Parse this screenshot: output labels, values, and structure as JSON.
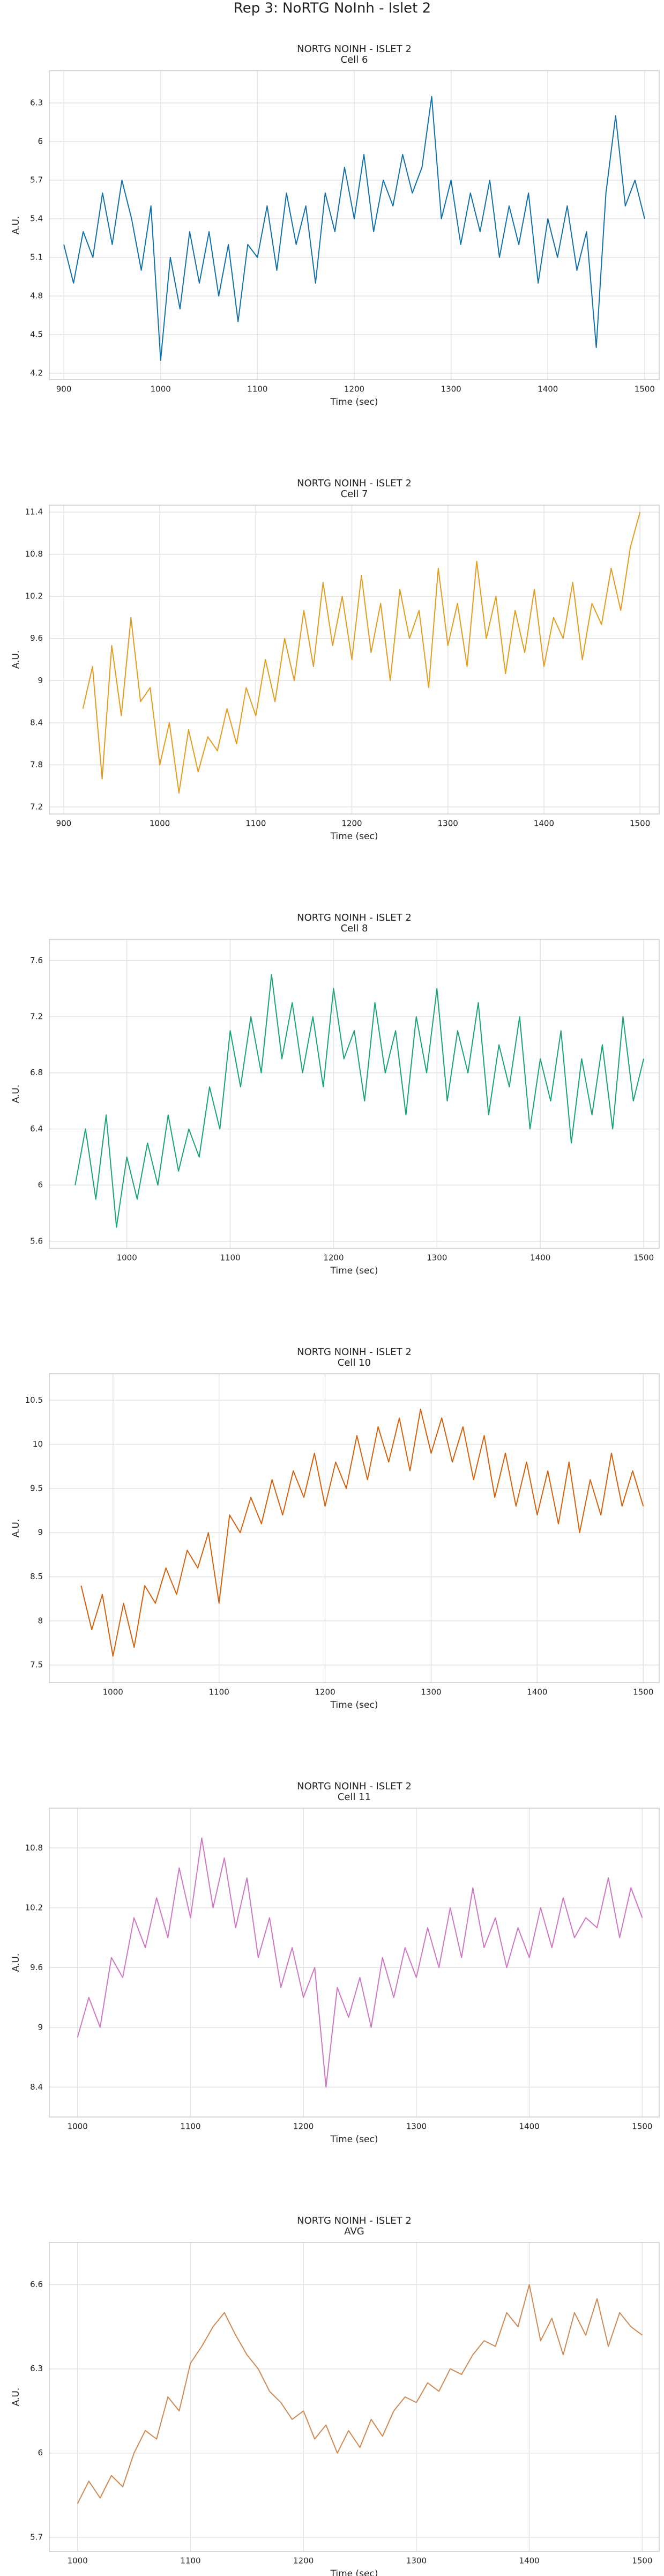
{
  "suptitle": "Rep 3: NoRTG NoInh - Islet 2",
  "chart_data": [
    {
      "type": "line",
      "title": "NORTG NOINH - ISLET 2",
      "subtitle": "Cell 6",
      "x_label": "Time (sec)",
      "y_label": "A.U.",
      "x": [
        900,
        910,
        920,
        930,
        940,
        950,
        960,
        970,
        980,
        990,
        1000,
        1010,
        1020,
        1030,
        1040,
        1050,
        1060,
        1070,
        1080,
        1090,
        1100,
        1110,
        1120,
        1130,
        1140,
        1150,
        1160,
        1170,
        1180,
        1190,
        1200,
        1210,
        1220,
        1230,
        1240,
        1250,
        1260,
        1270,
        1280,
        1290,
        1300,
        1310,
        1320,
        1330,
        1340,
        1350,
        1360,
        1370,
        1380,
        1390,
        1400,
        1410,
        1420,
        1430,
        1440,
        1450,
        1460,
        1470,
        1480,
        1490,
        1500
      ],
      "series": [
        {
          "color": "#1170aa",
          "values": [
            5.2,
            4.9,
            5.3,
            5.1,
            5.6,
            5.2,
            5.7,
            5.4,
            5.0,
            5.5,
            4.3,
            5.1,
            4.7,
            5.3,
            4.9,
            5.3,
            4.8,
            5.2,
            4.6,
            5.2,
            5.1,
            5.5,
            5.0,
            5.6,
            5.2,
            5.5,
            4.9,
            5.6,
            5.3,
            5.8,
            5.4,
            5.9,
            5.3,
            5.7,
            5.5,
            5.9,
            5.6,
            5.8,
            6.35,
            5.4,
            5.7,
            5.2,
            5.6,
            5.3,
            5.7,
            5.1,
            5.5,
            5.2,
            5.6,
            4.9,
            5.4,
            5.1,
            5.5,
            5.0,
            5.3,
            4.4,
            5.6,
            6.2,
            5.5,
            5.7,
            5.4
          ]
        }
      ],
      "xlim": [
        885,
        1515
      ],
      "ylim": [
        4.15,
        6.55
      ],
      "xticks": [
        900,
        1000,
        1100,
        1200,
        1300,
        1400,
        1500
      ],
      "yticks": [
        4.2,
        4.5,
        4.8,
        5.1,
        5.4,
        5.7,
        6.0,
        6.3
      ],
      "grid": true
    },
    {
      "type": "line",
      "title": "NORTG NOINH - ISLET 2",
      "subtitle": "Cell 7",
      "x_label": "Time (sec)",
      "y_label": "A.U.",
      "x": [
        920,
        930,
        940,
        950,
        960,
        970,
        980,
        990,
        1000,
        1010,
        1020,
        1030,
        1040,
        1050,
        1060,
        1070,
        1080,
        1090,
        1100,
        1110,
        1120,
        1130,
        1140,
        1150,
        1160,
        1170,
        1180,
        1190,
        1200,
        1210,
        1220,
        1230,
        1240,
        1250,
        1260,
        1270,
        1280,
        1290,
        1300,
        1310,
        1320,
        1330,
        1340,
        1350,
        1360,
        1370,
        1380,
        1390,
        1400,
        1410,
        1420,
        1430,
        1440,
        1450,
        1460,
        1470,
        1480,
        1490,
        1500
      ],
      "series": [
        {
          "color": "#e39c22",
          "values": [
            8.6,
            9.2,
            7.6,
            9.5,
            8.5,
            9.9,
            8.7,
            8.9,
            7.8,
            8.4,
            7.4,
            8.3,
            7.7,
            8.2,
            8.0,
            8.6,
            8.1,
            8.9,
            8.5,
            9.3,
            8.7,
            9.6,
            9.0,
            10.0,
            9.2,
            10.4,
            9.5,
            10.2,
            9.3,
            10.5,
            9.4,
            10.1,
            9.0,
            10.3,
            9.6,
            10.0,
            8.9,
            10.6,
            9.5,
            10.1,
            9.2,
            10.7,
            9.6,
            10.2,
            9.1,
            10.0,
            9.4,
            10.3,
            9.2,
            9.9,
            9.6,
            10.4,
            9.3,
            10.1,
            9.8,
            10.6,
            10.0,
            10.9,
            11.4
          ]
        }
      ],
      "xlim": [
        885,
        1520
      ],
      "ylim": [
        7.1,
        11.5
      ],
      "xticks": [
        900,
        1000,
        1100,
        1200,
        1300,
        1400,
        1500
      ],
      "yticks": [
        7.2,
        7.8,
        8.4,
        9.0,
        9.6,
        10.2,
        10.8,
        11.4
      ],
      "grid": true
    },
    {
      "type": "line",
      "title": "NORTG NOINH - ISLET 2",
      "subtitle": "Cell 8",
      "x_label": "Time (sec)",
      "y_label": "A.U.",
      "x": [
        950,
        960,
        970,
        980,
        990,
        1000,
        1010,
        1020,
        1030,
        1040,
        1050,
        1060,
        1070,
        1080,
        1090,
        1100,
        1110,
        1120,
        1130,
        1140,
        1150,
        1160,
        1170,
        1180,
        1190,
        1200,
        1210,
        1220,
        1230,
        1240,
        1250,
        1260,
        1270,
        1280,
        1290,
        1300,
        1310,
        1320,
        1330,
        1340,
        1350,
        1360,
        1370,
        1380,
        1390,
        1400,
        1410,
        1420,
        1430,
        1440,
        1450,
        1460,
        1470,
        1480,
        1490,
        1500
      ],
      "series": [
        {
          "color": "#1ba27c",
          "values": [
            6.0,
            6.4,
            5.9,
            6.5,
            5.7,
            6.2,
            5.9,
            6.3,
            6.0,
            6.5,
            6.1,
            6.4,
            6.2,
            6.7,
            6.4,
            7.1,
            6.7,
            7.2,
            6.8,
            7.5,
            6.9,
            7.3,
            6.8,
            7.2,
            6.7,
            7.4,
            6.9,
            7.1,
            6.6,
            7.3,
            6.8,
            7.1,
            6.5,
            7.2,
            6.8,
            7.4,
            6.6,
            7.1,
            6.8,
            7.3,
            6.5,
            7.0,
            6.7,
            7.2,
            6.4,
            6.9,
            6.6,
            7.1,
            6.3,
            6.9,
            6.5,
            7.0,
            6.4,
            7.2,
            6.6,
            6.9
          ]
        }
      ],
      "xlim": [
        925,
        1515
      ],
      "ylim": [
        5.55,
        7.75
      ],
      "xticks": [
        1000,
        1100,
        1200,
        1300,
        1400,
        1500
      ],
      "yticks": [
        5.6,
        6.0,
        6.4,
        6.8,
        7.2,
        7.6
      ],
      "grid": true
    },
    {
      "type": "line",
      "title": "NORTG NOINH - ISLET 2",
      "subtitle": "Cell 10",
      "x_label": "Time (sec)",
      "y_label": "A.U.",
      "x": [
        970,
        980,
        990,
        1000,
        1010,
        1020,
        1030,
        1040,
        1050,
        1060,
        1070,
        1080,
        1090,
        1100,
        1110,
        1120,
        1130,
        1140,
        1150,
        1160,
        1170,
        1180,
        1190,
        1200,
        1210,
        1220,
        1230,
        1240,
        1250,
        1260,
        1270,
        1280,
        1290,
        1300,
        1310,
        1320,
        1330,
        1340,
        1350,
        1360,
        1370,
        1380,
        1390,
        1400,
        1410,
        1420,
        1430,
        1440,
        1450,
        1460,
        1470,
        1480,
        1490,
        1500
      ],
      "series": [
        {
          "color": "#d2620f",
          "values": [
            8.4,
            7.9,
            8.3,
            7.6,
            8.2,
            7.7,
            8.4,
            8.2,
            8.6,
            8.3,
            8.8,
            8.6,
            9.0,
            8.2,
            9.2,
            9.0,
            9.4,
            9.1,
            9.6,
            9.2,
            9.7,
            9.4,
            9.9,
            9.3,
            9.8,
            9.5,
            10.1,
            9.6,
            10.2,
            9.8,
            10.3,
            9.7,
            10.4,
            9.9,
            10.3,
            9.8,
            10.2,
            9.6,
            10.1,
            9.4,
            9.9,
            9.3,
            9.8,
            9.2,
            9.7,
            9.1,
            9.8,
            9.0,
            9.6,
            9.2,
            9.9,
            9.3,
            9.7,
            9.3
          ]
        }
      ],
      "xlim": [
        940,
        1515
      ],
      "ylim": [
        7.3,
        10.8
      ],
      "xticks": [
        1000,
        1100,
        1200,
        1300,
        1400,
        1500
      ],
      "yticks": [
        7.5,
        8.0,
        8.5,
        9.0,
        9.5,
        10.0,
        10.5
      ],
      "grid": true
    },
    {
      "type": "line",
      "title": "NORTG NOINH - ISLET 2",
      "subtitle": "Cell 11",
      "x_label": "Time (sec)",
      "y_label": "A.U.",
      "x": [
        1000,
        1010,
        1020,
        1030,
        1040,
        1050,
        1060,
        1070,
        1080,
        1090,
        1100,
        1110,
        1120,
        1130,
        1140,
        1150,
        1160,
        1170,
        1180,
        1190,
        1200,
        1210,
        1220,
        1230,
        1240,
        1250,
        1260,
        1270,
        1280,
        1290,
        1300,
        1310,
        1320,
        1330,
        1340,
        1350,
        1360,
        1370,
        1380,
        1390,
        1400,
        1410,
        1420,
        1430,
        1440,
        1450,
        1460,
        1470,
        1480,
        1490,
        1500
      ],
      "series": [
        {
          "color": "#cf77c2",
          "values": [
            8.9,
            9.3,
            9.0,
            9.7,
            9.5,
            10.1,
            9.8,
            10.3,
            9.9,
            10.6,
            10.1,
            10.9,
            10.2,
            10.7,
            10.0,
            10.5,
            9.7,
            10.1,
            9.4,
            9.8,
            9.3,
            9.6,
            8.4,
            9.4,
            9.1,
            9.5,
            9.0,
            9.7,
            9.3,
            9.8,
            9.5,
            10.0,
            9.6,
            10.2,
            9.7,
            10.4,
            9.8,
            10.1,
            9.6,
            10.0,
            9.7,
            10.2,
            9.8,
            10.3,
            9.9,
            10.1,
            10.0,
            10.5,
            9.9,
            10.4,
            10.1
          ]
        }
      ],
      "xlim": [
        975,
        1515
      ],
      "ylim": [
        8.1,
        11.2
      ],
      "xticks": [
        1000,
        1100,
        1200,
        1300,
        1400,
        1500
      ],
      "yticks": [
        8.4,
        9.0,
        9.6,
        10.2,
        10.8
      ],
      "grid": true
    },
    {
      "type": "line",
      "title": "NORTG NOINH - ISLET 2",
      "subtitle": "AVG",
      "x_label": "Time (sec)",
      "y_label": "A.U.",
      "x": [
        1000,
        1010,
        1020,
        1030,
        1040,
        1050,
        1060,
        1070,
        1080,
        1090,
        1100,
        1110,
        1120,
        1130,
        1140,
        1150,
        1160,
        1170,
        1180,
        1190,
        1200,
        1210,
        1220,
        1230,
        1240,
        1250,
        1260,
        1270,
        1280,
        1290,
        1300,
        1310,
        1320,
        1330,
        1340,
        1350,
        1360,
        1370,
        1380,
        1390,
        1400,
        1410,
        1420,
        1430,
        1440,
        1450,
        1460,
        1470,
        1480,
        1490,
        1500
      ],
      "series": [
        {
          "color": "#cd8a55",
          "values": [
            5.82,
            5.9,
            5.84,
            5.92,
            5.88,
            6.0,
            6.08,
            6.05,
            6.2,
            6.15,
            6.32,
            6.38,
            6.45,
            6.5,
            6.42,
            6.35,
            6.3,
            6.22,
            6.18,
            6.12,
            6.15,
            6.05,
            6.1,
            6.0,
            6.08,
            6.02,
            6.12,
            6.06,
            6.15,
            6.2,
            6.18,
            6.25,
            6.22,
            6.3,
            6.28,
            6.35,
            6.4,
            6.38,
            6.5,
            6.45,
            6.6,
            6.4,
            6.48,
            6.35,
            6.5,
            6.42,
            6.55,
            6.38,
            6.5,
            6.45,
            6.42
          ]
        }
      ],
      "xlim": [
        975,
        1515
      ],
      "ylim": [
        5.65,
        6.75
      ],
      "xticks": [
        1000,
        1100,
        1200,
        1300,
        1400,
        1500
      ],
      "yticks": [
        5.7,
        6.0,
        6.3,
        6.6
      ],
      "grid": true
    }
  ]
}
